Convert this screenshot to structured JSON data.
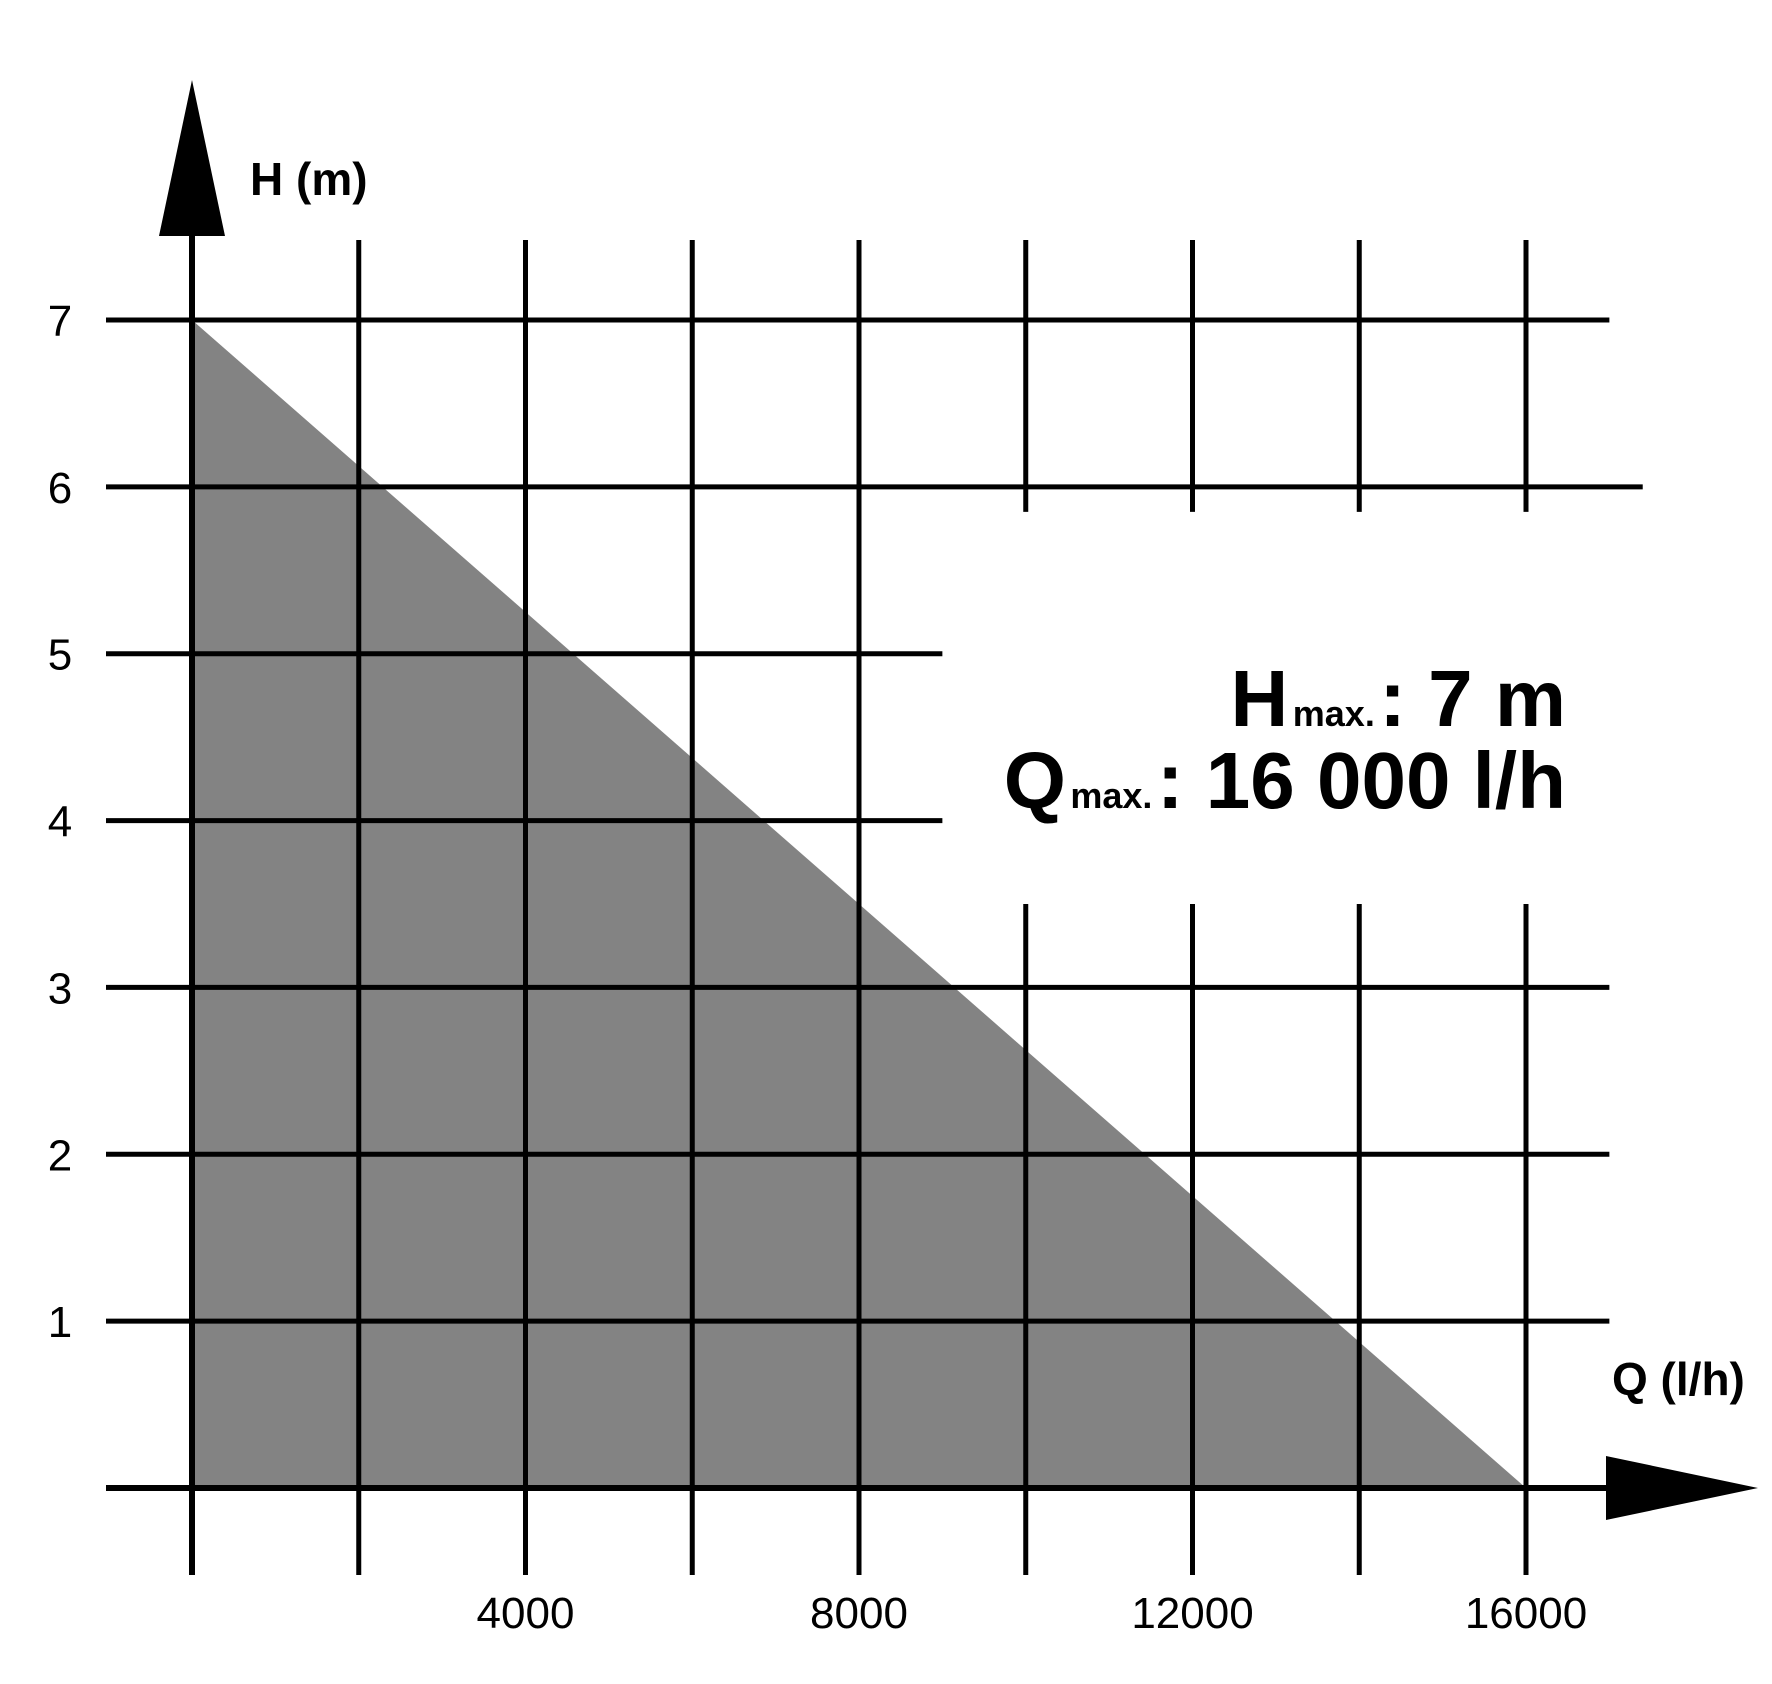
{
  "chart_data": {
    "type": "area",
    "x_axis_title": "Q (l/h)",
    "y_axis_title": "H (m)",
    "x_ticks": [
      4000,
      8000,
      12000,
      16000
    ],
    "y_ticks": [
      1,
      2,
      3,
      4,
      5,
      6,
      7
    ],
    "xlim": [
      0,
      16000
    ],
    "ylim": [
      0,
      7
    ],
    "grid": true,
    "fill_color": "#838383",
    "line_color": "#000000",
    "series": [
      {
        "x": [
          0,
          16000
        ],
        "y": [
          7,
          0
        ]
      }
    ],
    "annotations": {
      "h_symbol": "H",
      "h_sub": "max.",
      "h_value": ": 7 m",
      "q_symbol": "Q",
      "q_sub": "max.",
      "q_value": ": 16 000 l/h"
    }
  }
}
